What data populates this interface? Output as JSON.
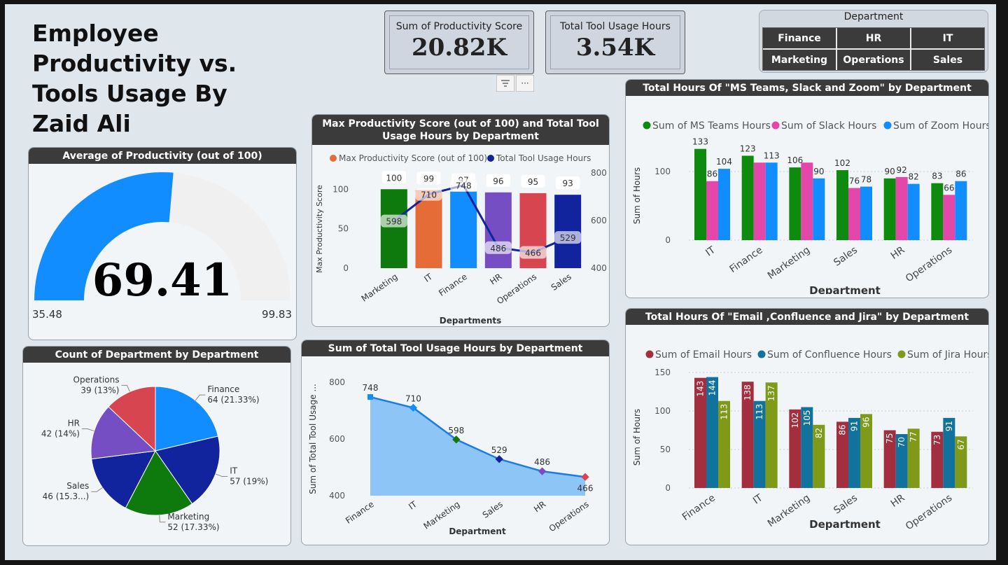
{
  "dashboard_title": "Employee Productivity vs. Tools Usage By Zaid Ali",
  "kpis": [
    {
      "label": "Sum of Productivity Score",
      "value": "20.82K"
    },
    {
      "label": "Total Tool Usage Hours",
      "value": "3.54K"
    }
  ],
  "slicer": {
    "title": "Department",
    "items": [
      "Finance",
      "HR",
      "IT",
      "Marketing",
      "Operations",
      "Sales"
    ]
  },
  "visual_buttons": {
    "filter_icon": "filter-icon",
    "more_icon": "more-options-icon",
    "more_glyph": "···"
  },
  "colors": {
    "title_bar": "#3b3b3b",
    "gauge_fill": "#118dff",
    "gauge_bg": "#f0f0f0",
    "area_fill": "#8ec5f7",
    "area_line": "#1e7be0",
    "ms_teams": "#0e8a0e",
    "slack": "#e247a9",
    "zoom": "#118dff",
    "email": "#a32e3e",
    "confluence": "#12729e",
    "jira": "#7f9a18",
    "combo_line": "#12239e"
  },
  "chart_data": [
    {
      "id": "gauge",
      "type": "gauge",
      "title": "Average of Productivity (out of 100)",
      "value": 69.41,
      "value_label": "69.41",
      "min": 35.48,
      "max": 99.83,
      "min_label": "35.48",
      "max_label": "99.83"
    },
    {
      "id": "pie",
      "type": "pie",
      "title": "Count of Department by Department",
      "slices": [
        {
          "name": "Finance",
          "value": 64,
          "label": "64 (21.33%)",
          "color": "#118dff"
        },
        {
          "name": "IT",
          "value": 57,
          "label": "57 (19%)",
          "color": "#12239e"
        },
        {
          "name": "Marketing",
          "value": 52,
          "label": "52 (17.33%)",
          "color": "#0e7a0e"
        },
        {
          "name": "Sales",
          "value": 46,
          "label": "46 (15.3...)",
          "color": "#12239e"
        },
        {
          "name": "HR",
          "value": 42,
          "label": "42 (14%)",
          "color": "#744ec2"
        },
        {
          "name": "Operations",
          "value": 39,
          "label": "39 (13%)",
          "color": "#d64550"
        }
      ]
    },
    {
      "id": "combo",
      "type": "bar",
      "title": "Max Productivity Score (out of 100) and Total Tool Usage Hours by Department",
      "legend": [
        "Max Productivity Score (out of 100)",
        "Total Tool Usage Hours"
      ],
      "legend_colors": [
        "#e66c37",
        "#12239e"
      ],
      "categories": [
        "Marketing",
        "IT",
        "Finance",
        "HR",
        "Operations",
        "Sales"
      ],
      "bar_colors": [
        "#0e7a0e",
        "#e66c37",
        "#118dff",
        "#744ec2",
        "#d64550",
        "#12239e"
      ],
      "bar_values": [
        100,
        99,
        97,
        96,
        95,
        93
      ],
      "line_values": [
        598,
        710,
        748,
        486,
        466,
        529
      ],
      "ylabel": "Max Productivity Score",
      "xlabel": "Departments",
      "ylim": [
        0,
        100
      ],
      "y_ticks": [
        0,
        50,
        100
      ],
      "y2lim": [
        400,
        800
      ],
      "y2_ticks": [
        400,
        600,
        800
      ]
    },
    {
      "id": "area",
      "type": "area",
      "title": "Sum of Total Tool Usage Hours by Department",
      "categories": [
        "Finance",
        "IT",
        "Marketing",
        "Sales",
        "HR",
        "Operations"
      ],
      "values": [
        748,
        710,
        598,
        529,
        486,
        466
      ],
      "marker_colors": [
        "#118dff",
        "#118dff",
        "#0e7a0e",
        "#12239e",
        "#744ec2",
        "#d64550"
      ],
      "ylabel": "Sum of Total Tool Usage ...",
      "xlabel": "Department",
      "ylim": [
        400,
        800
      ],
      "y_ticks": [
        400,
        600,
        800
      ]
    },
    {
      "id": "comm",
      "type": "bar",
      "title": "Total Hours Of \"MS Teams, Slack and Zoom\" by Department",
      "categories": [
        "IT",
        "Finance",
        "Marketing",
        "Sales",
        "HR",
        "Operations"
      ],
      "series": [
        {
          "name": "Sum of MS Teams Hours",
          "values": [
            133,
            123,
            106,
            102,
            90,
            83
          ],
          "color": "#0e8a0e"
        },
        {
          "name": "Sum of Slack Hours",
          "values": [
            86,
            113,
            113,
            76,
            92,
            66
          ],
          "color": "#e247a9"
        },
        {
          "name": "Sum of Zoom Hours",
          "values": [
            104,
            113,
            90,
            78,
            82,
            86
          ],
          "color": "#118dff"
        }
      ],
      "point_labels": [
        [
          "133",
          "86",
          "104"
        ],
        [
          "123",
          "",
          "113"
        ],
        [
          "106",
          "",
          "90"
        ],
        [
          "102",
          "76",
          "78"
        ],
        [
          "90",
          "92",
          "82"
        ],
        [
          "83",
          "66",
          "86"
        ]
      ],
      "ylabel": "Sum of Hours",
      "xlabel": "Department",
      "ylim": [
        0,
        150
      ],
      "y_ticks": [
        0,
        100
      ]
    },
    {
      "id": "collab",
      "type": "bar",
      "title": "Total Hours Of \"Email ,Confluence and Jira\" by Department",
      "categories": [
        "Finance",
        "IT",
        "Marketing",
        "Sales",
        "HR",
        "Operations"
      ],
      "series": [
        {
          "name": "Sum of Email Hours",
          "values": [
            143,
            138,
            102,
            86,
            75,
            73
          ],
          "color": "#a32e3e"
        },
        {
          "name": "Sum of Confluence Hours",
          "values": [
            144,
            113,
            105,
            91,
            70,
            91
          ],
          "color": "#12729e"
        },
        {
          "name": "Sum of Jira Hours",
          "values": [
            113,
            137,
            82,
            96,
            77,
            67
          ],
          "color": "#7f9a18"
        }
      ],
      "ylabel": "Sum of Hours",
      "xlabel": "Department",
      "ylim": [
        0,
        150
      ],
      "y_ticks": [
        0,
        50,
        100,
        150
      ]
    }
  ]
}
